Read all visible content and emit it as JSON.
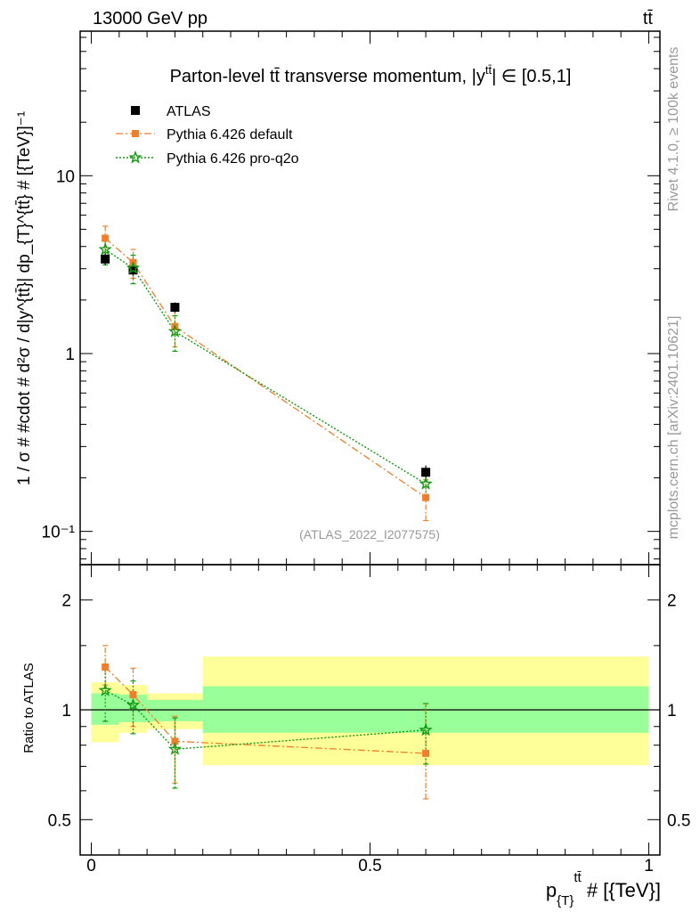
{
  "header": {
    "energy_label": "13000 GeV pp",
    "process_label": "tt̄"
  },
  "side_labels": {
    "rivet": "Rivet 4.1.0, ≥ 100k events",
    "mcplots": "mcplots.cern.ch [arXiv:2401.10621]"
  },
  "chart_data": [
    {
      "type": "scatter",
      "title": "Parton-level tt̄ transverse momentum, |ytt̄| ∈ [0.5,1]",
      "title_parts": {
        "prefix": "Parton-level ",
        "tt": "tt̄",
        "middle": " transverse momentum, |y",
        "sup": "tt̄",
        "suffix": "| ∈ [0.5,1]"
      },
      "analysis_id": "(ATLAS_2022_I2077575)",
      "xlabel": "p_{T}^{tt̄} # [{TeV}]",
      "xlabel_parts": {
        "main": "p",
        "sub": "{T}",
        "sup": "tt̄",
        "rest": " # [{TeV}]"
      },
      "ylabel": "1 / σ # #cdot # d²σ / d|y^{tt̄}| dp_{T}^{tt̄} # [{TeV}]⁻¹",
      "yscale": "log",
      "xlim": [
        -0.02,
        1.02
      ],
      "ylim": [
        0.065,
        65
      ],
      "yticks": [
        0.1,
        1,
        10
      ],
      "ytick_labels": {
        "0.1": "10⁻¹",
        "1": "1",
        "10": "10"
      },
      "legend_position": "top-left",
      "series": [
        {
          "name": "ATLAS",
          "marker": "square",
          "color": "#000000",
          "x": [
            0.025,
            0.075,
            0.15,
            0.6
          ],
          "xerr": [
            0.025,
            0.025,
            0.05,
            0.4
          ],
          "y": [
            3.4,
            2.95,
            1.82,
            0.215
          ],
          "yerr": [
            0.25,
            0.2,
            0.12,
            0.02
          ]
        },
        {
          "name": "Pythia 6.426 default",
          "marker": "square",
          "line": "dashdot",
          "color": "#ef7f2a",
          "x": [
            0.025,
            0.075,
            0.15,
            0.6
          ],
          "y": [
            4.45,
            3.25,
            1.42,
            0.155
          ],
          "yerr": [
            0.75,
            0.6,
            0.33,
            0.04
          ]
        },
        {
          "name": "Pythia 6.426 pro-q2o",
          "marker": "star",
          "line": "dotted",
          "color": "#119911",
          "x": [
            0.025,
            0.075,
            0.15,
            0.6
          ],
          "y": [
            3.85,
            3.02,
            1.33,
            0.185
          ],
          "yerr": [
            0.7,
            0.55,
            0.3,
            0.035
          ]
        }
      ]
    },
    {
      "type": "scatter",
      "ylabel": "Ratio to ATLAS",
      "yscale": "log",
      "ylim": [
        0.4,
        2.5
      ],
      "yticks": [
        0.5,
        1,
        2
      ],
      "ytick_labels": [
        "0.5",
        "1",
        "2"
      ],
      "xticks": [
        0,
        0.5,
        1
      ],
      "xtick_labels": [
        "0",
        "0.5",
        "1"
      ],
      "reference": 1,
      "bands": [
        {
          "x0": 0.0,
          "x1": 0.05,
          "inner": [
            0.91,
            1.11
          ],
          "outer": [
            0.815,
            1.19
          ]
        },
        {
          "x0": 0.05,
          "x1": 0.1,
          "inner": [
            0.925,
            1.1
          ],
          "outer": [
            0.865,
            1.17
          ]
        },
        {
          "x0": 0.1,
          "x1": 0.2,
          "inner": [
            0.93,
            1.065
          ],
          "outer": [
            0.885,
            1.11
          ]
        },
        {
          "x0": 0.2,
          "x1": 1.0,
          "inner": [
            0.865,
            1.16
          ],
          "outer": [
            0.705,
            1.4
          ]
        }
      ],
      "series": [
        {
          "name": "Pythia 6.426 default",
          "color": "#ef7f2a",
          "x": [
            0.025,
            0.075,
            0.15,
            0.6
          ],
          "y": [
            1.31,
            1.1,
            0.82,
            0.76
          ],
          "ylo": [
            1.17,
            0.9,
            0.63,
            0.57
          ],
          "yhi": [
            1.5,
            1.3,
            0.96,
            1.04
          ]
        },
        {
          "name": "Pythia 6.426 pro-q2o",
          "color": "#119911",
          "x": [
            0.025,
            0.075,
            0.15,
            0.6
          ],
          "y": [
            1.13,
            1.03,
            0.78,
            0.88
          ],
          "ylo": [
            0.93,
            0.86,
            0.61,
            0.71
          ],
          "yhi": [
            1.32,
            1.2,
            0.95,
            1.04
          ]
        }
      ]
    }
  ]
}
